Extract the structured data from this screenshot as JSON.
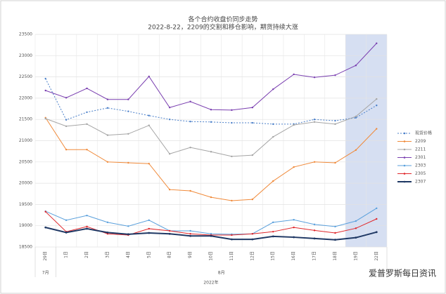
{
  "chart_data": {
    "type": "line",
    "title": "各个合约收盘价同步走势",
    "subtitle": "2022-8-22，2209的交割和移仓影响，期货持续大涨",
    "categories": [
      "29日",
      "1日",
      "2日",
      "3日",
      "4日",
      "5日",
      "8日",
      "9日",
      "10日",
      "11日",
      "12日",
      "15日",
      "16日",
      "17日",
      "18日",
      "19日",
      "22日"
    ],
    "x_groups": [
      {
        "label": "7月",
        "span": 1
      },
      {
        "label": "8月",
        "span": 16
      }
    ],
    "x_super_label": "2022年",
    "shaded_categories": [
      15,
      16
    ],
    "ylim": [
      18500,
      23500
    ],
    "yticks": [
      18500,
      19000,
      19500,
      20000,
      20500,
      21000,
      21500,
      22000,
      22500,
      23000,
      23500
    ],
    "grid": true,
    "legend": "right",
    "watermark": "爱普罗斯每日资讯",
    "series": [
      {
        "name": "现货价格",
        "color": "#4a7fc9",
        "dash": true,
        "width": 1,
        "values": [
          22460,
          21490,
          21670,
          21770,
          21690,
          21590,
          21500,
          21450,
          21440,
          21420,
          21420,
          21390,
          21390,
          21500,
          21470,
          21540,
          21830
        ]
      },
      {
        "name": "2209",
        "color": "#f08a3a",
        "dash": false,
        "width": 1,
        "values": [
          21540,
          20790,
          20790,
          20500,
          20480,
          20460,
          19850,
          19820,
          19670,
          19590,
          19620,
          20050,
          20380,
          20500,
          20480,
          20780,
          21280
        ]
      },
      {
        "name": "2211",
        "color": "#a5a5a5",
        "dash": false,
        "width": 1,
        "values": [
          21520,
          21340,
          21390,
          21130,
          21160,
          21360,
          20690,
          20840,
          20740,
          20630,
          20660,
          21090,
          21370,
          21440,
          21390,
          21570,
          21980
        ]
      },
      {
        "name": "2301",
        "color": "#7a3fb0",
        "dash": false,
        "width": 1,
        "values": [
          22180,
          22010,
          22230,
          21970,
          21970,
          22510,
          21780,
          21920,
          21730,
          21720,
          21780,
          22210,
          22560,
          22490,
          22540,
          22770,
          23290
        ]
      },
      {
        "name": "2303",
        "color": "#5aa0dc",
        "dash": false,
        "width": 1,
        "values": [
          19340,
          19130,
          19240,
          19080,
          18990,
          19130,
          18880,
          18880,
          18810,
          18800,
          18810,
          19080,
          19140,
          19030,
          18980,
          19110,
          19410
        ]
      },
      {
        "name": "2305",
        "color": "#e0262a",
        "dash": false,
        "width": 1,
        "values": [
          19330,
          18860,
          18980,
          18810,
          18780,
          18930,
          18880,
          18810,
          18780,
          18780,
          18810,
          18860,
          18960,
          18890,
          18830,
          18940,
          19160
        ]
      },
      {
        "name": "2307",
        "color": "#1f3864",
        "dash": false,
        "width": 2,
        "values": [
          18960,
          18840,
          18930,
          18840,
          18800,
          18830,
          18810,
          18760,
          18760,
          18680,
          18680,
          18750,
          18730,
          18700,
          18670,
          18720,
          18850
        ]
      }
    ]
  }
}
